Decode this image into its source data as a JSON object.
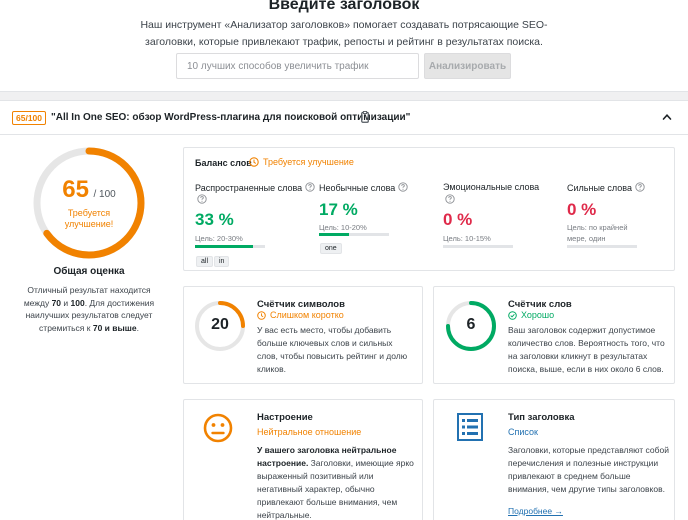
{
  "header": {
    "title": "Введите заголовок",
    "description": "Наш инструмент «Анализатор заголовков» помогает создавать потрясающие SEO-заголовки, которые привлекают трафик, репосты и рейтинг в результатах поиска.",
    "input_placeholder": "10 лучших способов увеличить трафик",
    "analyze_label": "Анализировать"
  },
  "result": {
    "score_pill": "65/100",
    "headline": "\"All In One SEO: обзор WordPress-плагина для поисковой оптимизации\"",
    "score": "65",
    "score_max": "/ 100",
    "score_value": 0.65,
    "score_status": "Требуется улучшение!",
    "overall_title": "Общая оценка",
    "overall_desc_1": "Отличный результат находится между ",
    "overall_desc_range_a": "70",
    "overall_desc_and": " и ",
    "overall_desc_range_b": "100",
    "overall_desc_2": ". Для достижения наилучших результатов следует стремиться к ",
    "overall_desc_target": "70 и выше",
    "overall_desc_3": "."
  },
  "word_balance": {
    "title": "Баланс слов",
    "status": "Требуется улучшение",
    "common": {
      "label": "Распространенные слова",
      "pct": "33 %",
      "goal": "Цель: 20-30%",
      "fill": 0.33
    },
    "uncommon": {
      "label": "Необычные слова",
      "pct": "17 %",
      "goal": "Цель: 10-20%",
      "fill": 0.17
    },
    "emotional": {
      "label": "Эмоциональные слова",
      "pct": "0 %",
      "goal": "Цель: 10-15%",
      "fill": 0
    },
    "power": {
      "label": "Сильные слова",
      "pct": "0 %",
      "goal": "Цель: по крайней мере, один",
      "fill": 0
    },
    "common_tags": [
      "all",
      "in"
    ],
    "uncommon_tags": [
      "one"
    ]
  },
  "char_counter": {
    "title": "Счётчик символов",
    "value": "20",
    "status": "Слишком коротко",
    "text": "У вас есть место, чтобы добавить больше ключевых слов и сильных слов, чтобы повысить рейтинг и долю кликов."
  },
  "word_counter": {
    "title": "Счётчик слов",
    "value": "6",
    "status": "Хорошо",
    "text": "Ваш заголовок содержит допустимое количество слов. Вероятность того, что на заголовки кликнут в результатах поиска, выше, если в них около 6 слов."
  },
  "sentiment": {
    "title": "Настроение",
    "status": "Нейтральное отношение",
    "text_bold": "У вашего заголовка нейтральное настроение.",
    "text": " Заголовки, имеющие ярко выраженный позитивный или негативный характер, обычно привлекают больше внимания, чем нейтральные."
  },
  "headline_type": {
    "title": "Тип заголовка",
    "status": "Список",
    "text": "Заголовки, которые представляют собой перечисления и полезные инструкции привлекают в среднем больше внимания, чем другие типы заголовков.",
    "more_link": "Подробнее →"
  },
  "colors": {
    "orange": "#f18200",
    "green": "#00aa63",
    "red": "#df2a4a",
    "blue": "#2271b1"
  }
}
